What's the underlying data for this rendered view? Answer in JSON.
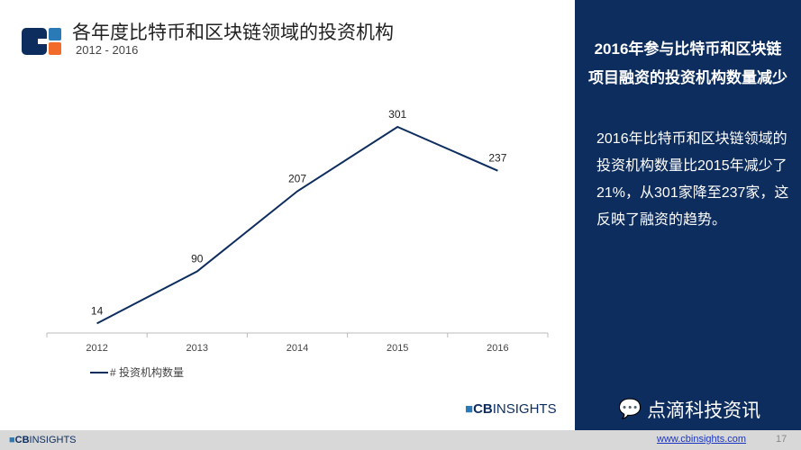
{
  "header": {
    "title": "各年度比特币和区块链领域的投资机构",
    "subtitle": "2012 - 2016"
  },
  "chart_data": {
    "type": "line",
    "categories": [
      "2012",
      "2013",
      "2014",
      "2015",
      "2016"
    ],
    "series": [
      {
        "name": "# 投资机构数量",
        "values": [
          14,
          90,
          207,
          301,
          237
        ],
        "color": "#0d2d5e"
      }
    ],
    "ylim": [
      0,
      301
    ],
    "grid": false,
    "legend": "bottom-left"
  },
  "panel": {
    "heading1": "2016年参与比特币和区块链",
    "heading2": "项目融资的投资机构数量减少",
    "body": "2016年比特币和区块链领域的投资机构数量比2015年减少了21%，从301家降至237家，这反映了融资的趋势。",
    "wechat": "点滴科技资讯"
  },
  "brand": {
    "cb": "CB",
    "insights": "INSIGHTS"
  },
  "footer": {
    "url": "www.cbinsights.com",
    "page": "17"
  }
}
